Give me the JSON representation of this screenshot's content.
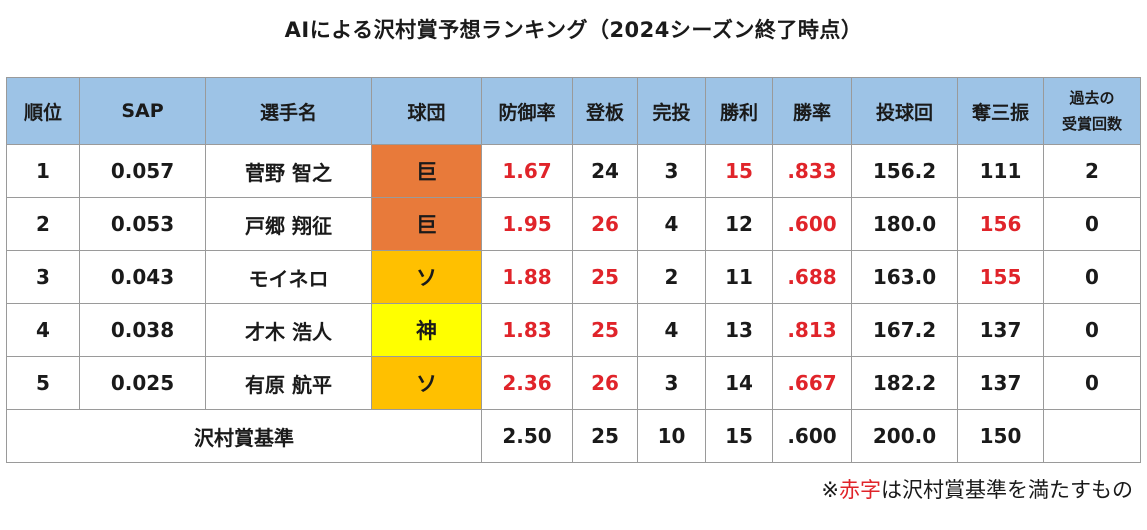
{
  "title": "AIによる沢村賞予想ランキング（2024シーズン終了時点）",
  "colors": {
    "header_bg": "#9dc3e6",
    "giants": "#e87a3a",
    "softbank": "#ffc000",
    "hanshin": "#ffff00",
    "highlight_text": "#e0242a"
  },
  "chart_data": {
    "type": "table",
    "headers": [
      "順位",
      "SAP",
      "選手名",
      "球団",
      "防御率",
      "登板",
      "完投",
      "勝利",
      "勝率",
      "投球回",
      "奪三振",
      "過去の受賞回数"
    ],
    "rows": [
      {
        "rank": "1",
        "sap": "0.057",
        "name": "菅野 智之",
        "team": "巨",
        "team_color": "#e87a3a",
        "era": "1.67",
        "games": "24",
        "cg": "3",
        "wins": "15",
        "pct": ".833",
        "ip": "156.2",
        "so": "111",
        "past": "2",
        "red": [
          "era",
          "wins",
          "pct"
        ]
      },
      {
        "rank": "2",
        "sap": "0.053",
        "name": "戸郷 翔征",
        "team": "巨",
        "team_color": "#e87a3a",
        "era": "1.95",
        "games": "26",
        "cg": "4",
        "wins": "12",
        "pct": ".600",
        "ip": "180.0",
        "so": "156",
        "past": "0",
        "red": [
          "era",
          "games",
          "pct",
          "so"
        ]
      },
      {
        "rank": "3",
        "sap": "0.043",
        "name": "モイネロ",
        "team": "ソ",
        "team_color": "#ffc000",
        "era": "1.88",
        "games": "25",
        "cg": "2",
        "wins": "11",
        "pct": ".688",
        "ip": "163.0",
        "so": "155",
        "past": "0",
        "red": [
          "era",
          "games",
          "pct",
          "so"
        ]
      },
      {
        "rank": "4",
        "sap": "0.038",
        "name": "才木 浩人",
        "team": "神",
        "team_color": "#ffff00",
        "era": "1.83",
        "games": "25",
        "cg": "4",
        "wins": "13",
        "pct": ".813",
        "ip": "167.2",
        "so": "137",
        "past": "0",
        "red": [
          "era",
          "games",
          "pct"
        ]
      },
      {
        "rank": "5",
        "sap": "0.025",
        "name": "有原 航平",
        "team": "ソ",
        "team_color": "#ffc000",
        "era": "2.36",
        "games": "26",
        "cg": "3",
        "wins": "14",
        "pct": ".667",
        "ip": "182.2",
        "so": "137",
        "past": "0",
        "red": [
          "era",
          "games",
          "pct"
        ]
      }
    ],
    "criteria": {
      "label": "沢村賞基準",
      "era": "2.50",
      "games": "25",
      "cg": "10",
      "wins": "15",
      "pct": ".600",
      "ip": "200.0",
      "so": "150"
    }
  },
  "note": {
    "prefix": "※",
    "red_word": "赤字",
    "suffix": "は沢村賞基準を満たすもの"
  }
}
